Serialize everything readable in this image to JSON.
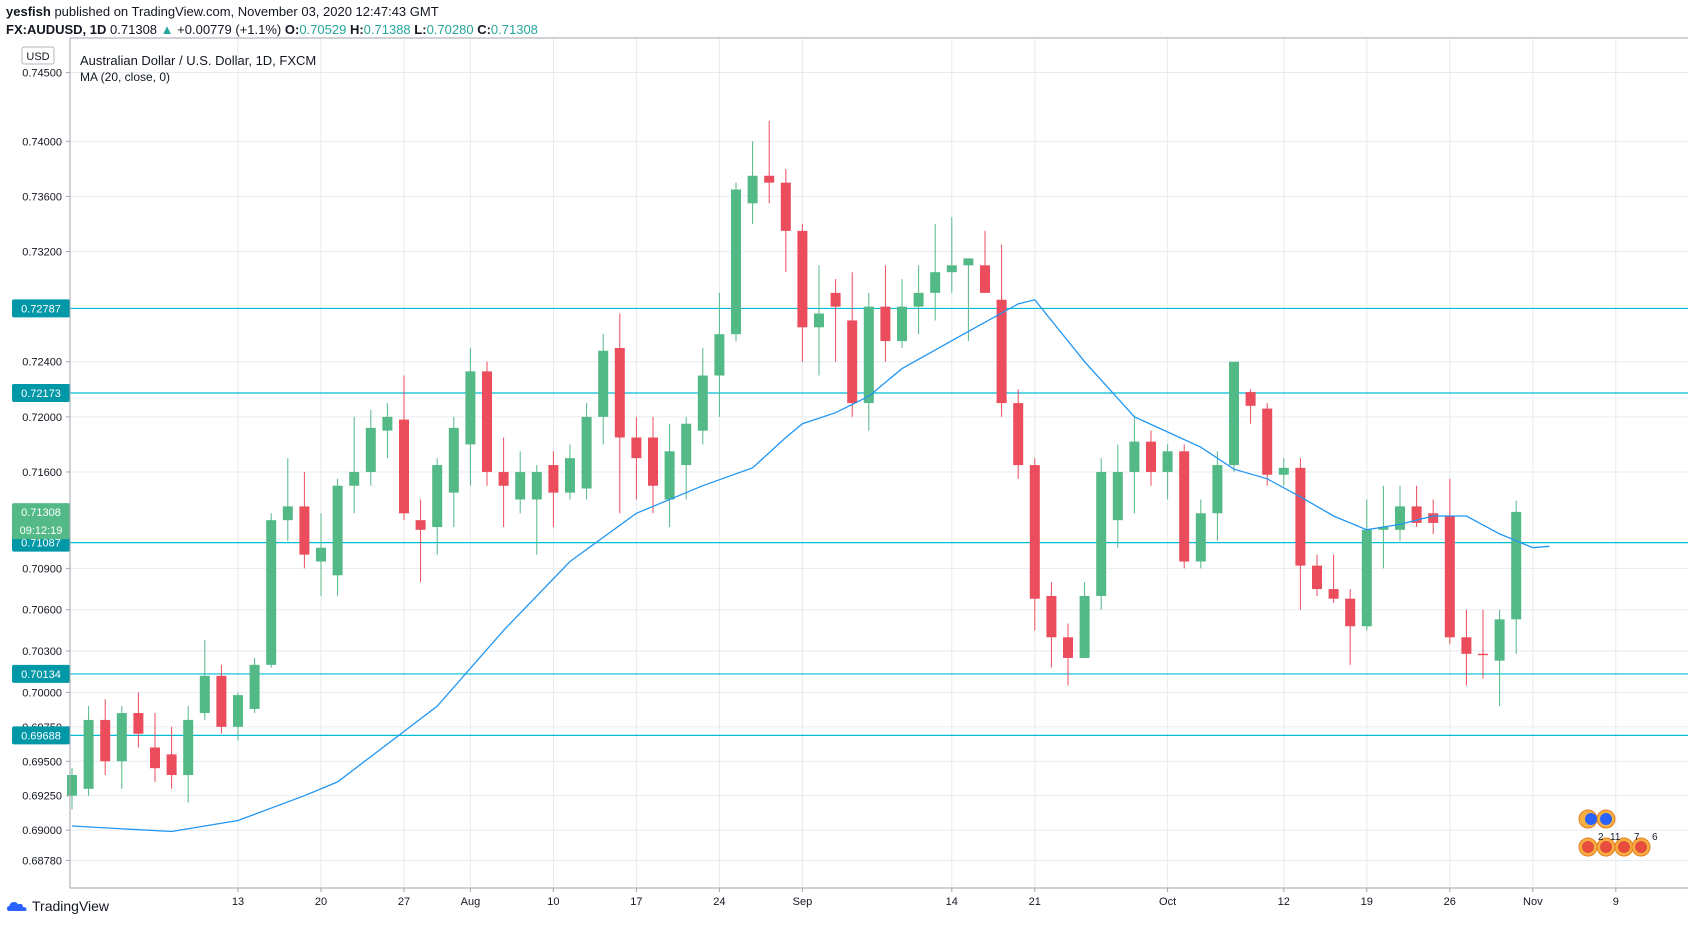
{
  "header": {
    "publisher": "yesfish",
    "published_text": "published on TradingView.com, November 03, 2020 12:47:43 GMT",
    "symbol": "FX:AUDUSD, 1D",
    "last": "0.71308",
    "change": "+0.00779 (+1.1%)",
    "o_label": "O:",
    "o": "0.70529",
    "h_label": "H:",
    "h": "0.71388",
    "l_label": "L:",
    "l": "0.70280",
    "c_label": "C:",
    "c": "0.71308"
  },
  "legend": {
    "title": "Australian Dollar / U.S. Dollar, 1D, FXCM",
    "indicator": "MA (20, close, 0)"
  },
  "axis": {
    "currency_badge": "USD",
    "countdown": "09:12:19"
  },
  "footer": {
    "brand": "TradingView"
  },
  "colors": {
    "up": "#53b987",
    "down": "#eb4d5c",
    "ma": "#2196f3",
    "hline": "#00bcd4",
    "grid": "#e6ebf0"
  },
  "chart_data": {
    "type": "candlestick",
    "title": "Australian Dollar / U.S. Dollar, 1D, FXCM",
    "y_ticks": [
      "0.74500",
      "0.74000",
      "0.73600",
      "0.73200",
      "0.72400",
      "0.72000",
      "0.71600",
      "0.70900",
      "0.70600",
      "0.70300",
      "0.70000",
      "0.69750",
      "0.69500",
      "0.69250",
      "0.69000",
      "0.68780"
    ],
    "ylim": [
      0.6858,
      0.7475
    ],
    "x_ticks": [
      {
        "label": "13",
        "day": 10
      },
      {
        "label": "20",
        "day": 15
      },
      {
        "label": "27",
        "day": 20
      },
      {
        "label": "Aug",
        "day": 24
      },
      {
        "label": "10",
        "day": 29
      },
      {
        "label": "17",
        "day": 34
      },
      {
        "label": "24",
        "day": 39
      },
      {
        "label": "Sep",
        "day": 44
      },
      {
        "label": "14",
        "day": 53
      },
      {
        "label": "21",
        "day": 58
      },
      {
        "label": "Oct",
        "day": 66
      },
      {
        "label": "12",
        "day": 73
      },
      {
        "label": "19",
        "day": 78
      },
      {
        "label": "26",
        "day": 83
      },
      {
        "label": "Nov",
        "day": 88
      },
      {
        "label": "9",
        "day": 93
      }
    ],
    "horizontal_levels": [
      "0.72787",
      "0.72173",
      "0.71087",
      "0.70134",
      "0.69688"
    ],
    "last_price_label": "0.71308",
    "candles": [
      [
        0.6925,
        0.6945,
        0.6915,
        0.694
      ],
      [
        0.693,
        0.699,
        0.6925,
        0.698
      ],
      [
        0.698,
        0.6995,
        0.694,
        0.695
      ],
      [
        0.695,
        0.699,
        0.693,
        0.6985
      ],
      [
        0.6985,
        0.7,
        0.696,
        0.697
      ],
      [
        0.696,
        0.6985,
        0.6935,
        0.6945
      ],
      [
        0.6955,
        0.6975,
        0.693,
        0.694
      ],
      [
        0.694,
        0.699,
        0.692,
        0.698
      ],
      [
        0.6985,
        0.7038,
        0.698,
        0.7012
      ],
      [
        0.7012,
        0.702,
        0.697,
        0.6975
      ],
      [
        0.6975,
        0.7,
        0.6965,
        0.6998
      ],
      [
        0.6988,
        0.7025,
        0.6985,
        0.702
      ],
      [
        0.702,
        0.713,
        0.7018,
        0.7125
      ],
      [
        0.7125,
        0.717,
        0.711,
        0.7135
      ],
      [
        0.7135,
        0.716,
        0.709,
        0.71
      ],
      [
        0.7095,
        0.713,
        0.707,
        0.7105
      ],
      [
        0.7085,
        0.7155,
        0.707,
        0.715
      ],
      [
        0.715,
        0.72,
        0.713,
        0.716
      ],
      [
        0.716,
        0.7205,
        0.715,
        0.7192
      ],
      [
        0.719,
        0.721,
        0.717,
        0.72
      ],
      [
        0.7198,
        0.723,
        0.7125,
        0.713
      ],
      [
        0.7125,
        0.714,
        0.708,
        0.7118
      ],
      [
        0.712,
        0.717,
        0.71,
        0.7165
      ],
      [
        0.7145,
        0.72,
        0.712,
        0.7192
      ],
      [
        0.718,
        0.725,
        0.715,
        0.7233
      ],
      [
        0.7233,
        0.724,
        0.715,
        0.716
      ],
      [
        0.716,
        0.7185,
        0.712,
        0.715
      ],
      [
        0.714,
        0.7175,
        0.713,
        0.716
      ],
      [
        0.714,
        0.7165,
        0.71,
        0.716
      ],
      [
        0.7165,
        0.7175,
        0.712,
        0.7145
      ],
      [
        0.7145,
        0.718,
        0.714,
        0.717
      ],
      [
        0.7148,
        0.721,
        0.714,
        0.72
      ],
      [
        0.72,
        0.726,
        0.718,
        0.7248
      ],
      [
        0.725,
        0.7275,
        0.713,
        0.7185
      ],
      [
        0.7185,
        0.72,
        0.714,
        0.717
      ],
      [
        0.7185,
        0.72,
        0.713,
        0.715
      ],
      [
        0.714,
        0.7195,
        0.712,
        0.7175
      ],
      [
        0.7165,
        0.72,
        0.714,
        0.7195
      ],
      [
        0.719,
        0.725,
        0.718,
        0.723
      ],
      [
        0.723,
        0.729,
        0.72,
        0.726
      ],
      [
        0.726,
        0.737,
        0.7255,
        0.7365
      ],
      [
        0.7355,
        0.74,
        0.734,
        0.7375
      ],
      [
        0.7375,
        0.7415,
        0.7355,
        0.737
      ],
      [
        0.737,
        0.738,
        0.7305,
        0.7335
      ],
      [
        0.7335,
        0.734,
        0.724,
        0.7265
      ],
      [
        0.7265,
        0.731,
        0.723,
        0.7275
      ],
      [
        0.729,
        0.73,
        0.724,
        0.728
      ],
      [
        0.727,
        0.7305,
        0.72,
        0.721
      ],
      [
        0.721,
        0.729,
        0.719,
        0.728
      ],
      [
        0.728,
        0.731,
        0.724,
        0.7255
      ],
      [
        0.7255,
        0.73,
        0.725,
        0.728
      ],
      [
        0.728,
        0.731,
        0.726,
        0.729
      ],
      [
        0.729,
        0.734,
        0.727,
        0.7305
      ],
      [
        0.7305,
        0.7345,
        0.729,
        0.731
      ],
      [
        0.731,
        0.7315,
        0.7255,
        0.7315
      ],
      [
        0.731,
        0.7335,
        0.729,
        0.729
      ],
      [
        0.7285,
        0.7325,
        0.72,
        0.721
      ],
      [
        0.721,
        0.722,
        0.7155,
        0.7165
      ],
      [
        0.7165,
        0.717,
        0.7045,
        0.7068
      ],
      [
        0.707,
        0.708,
        0.7018,
        0.704
      ],
      [
        0.704,
        0.705,
        0.7005,
        0.7025
      ],
      [
        0.7025,
        0.708,
        0.7025,
        0.707
      ],
      [
        0.707,
        0.717,
        0.706,
        0.716
      ],
      [
        0.7125,
        0.718,
        0.7105,
        0.716
      ],
      [
        0.716,
        0.72,
        0.713,
        0.7182
      ],
      [
        0.7182,
        0.719,
        0.715,
        0.716
      ],
      [
        0.716,
        0.718,
        0.714,
        0.7175
      ],
      [
        0.7175,
        0.718,
        0.709,
        0.7095
      ],
      [
        0.7095,
        0.714,
        0.709,
        0.713
      ],
      [
        0.713,
        0.7175,
        0.711,
        0.7165
      ],
      [
        0.7165,
        0.724,
        0.716,
        0.724
      ],
      [
        0.7218,
        0.722,
        0.7195,
        0.7208
      ],
      [
        0.7206,
        0.721,
        0.715,
        0.7158
      ],
      [
        0.7158,
        0.717,
        0.715,
        0.7163
      ],
      [
        0.7163,
        0.717,
        0.706,
        0.7092
      ],
      [
        0.7092,
        0.71,
        0.707,
        0.7075
      ],
      [
        0.7075,
        0.71,
        0.7065,
        0.7068
      ],
      [
        0.7068,
        0.7075,
        0.702,
        0.7048
      ],
      [
        0.7048,
        0.714,
        0.7045,
        0.7118
      ],
      [
        0.7118,
        0.715,
        0.709,
        0.712
      ],
      [
        0.7118,
        0.715,
        0.711,
        0.7135
      ],
      [
        0.7135,
        0.715,
        0.712,
        0.7123
      ],
      [
        0.713,
        0.714,
        0.7115,
        0.7123
      ],
      [
        0.7128,
        0.7155,
        0.7035,
        0.704
      ],
      [
        0.704,
        0.706,
        0.7005,
        0.7028
      ],
      [
        0.7028,
        0.706,
        0.701,
        0.7027
      ],
      [
        0.7023,
        0.706,
        0.699,
        0.7053
      ],
      [
        0.7053,
        0.7139,
        0.7028,
        0.7131
      ]
    ],
    "ma20": [
      [
        0,
        0.6903
      ],
      [
        6,
        0.6899
      ],
      [
        10,
        0.6907
      ],
      [
        14,
        0.6925
      ],
      [
        16,
        0.6935
      ],
      [
        22,
        0.699
      ],
      [
        26,
        0.7045
      ],
      [
        30,
        0.7095
      ],
      [
        34,
        0.713
      ],
      [
        38,
        0.715
      ],
      [
        41,
        0.7163
      ],
      [
        43,
        0.7185
      ],
      [
        44,
        0.7195
      ],
      [
        46,
        0.7203
      ],
      [
        48,
        0.7215
      ],
      [
        50,
        0.7235
      ],
      [
        54,
        0.7262
      ],
      [
        57,
        0.7282
      ],
      [
        58,
        0.7285
      ],
      [
        61,
        0.724
      ],
      [
        64,
        0.72
      ],
      [
        68,
        0.7178
      ],
      [
        70,
        0.7162
      ],
      [
        72,
        0.7155
      ],
      [
        74,
        0.7142
      ],
      [
        76,
        0.7128
      ],
      [
        78,
        0.7118
      ],
      [
        80,
        0.7122
      ],
      [
        82,
        0.7128
      ],
      [
        84,
        0.7128
      ],
      [
        86,
        0.7115
      ],
      [
        88,
        0.7105
      ],
      [
        89,
        0.7106
      ]
    ]
  }
}
